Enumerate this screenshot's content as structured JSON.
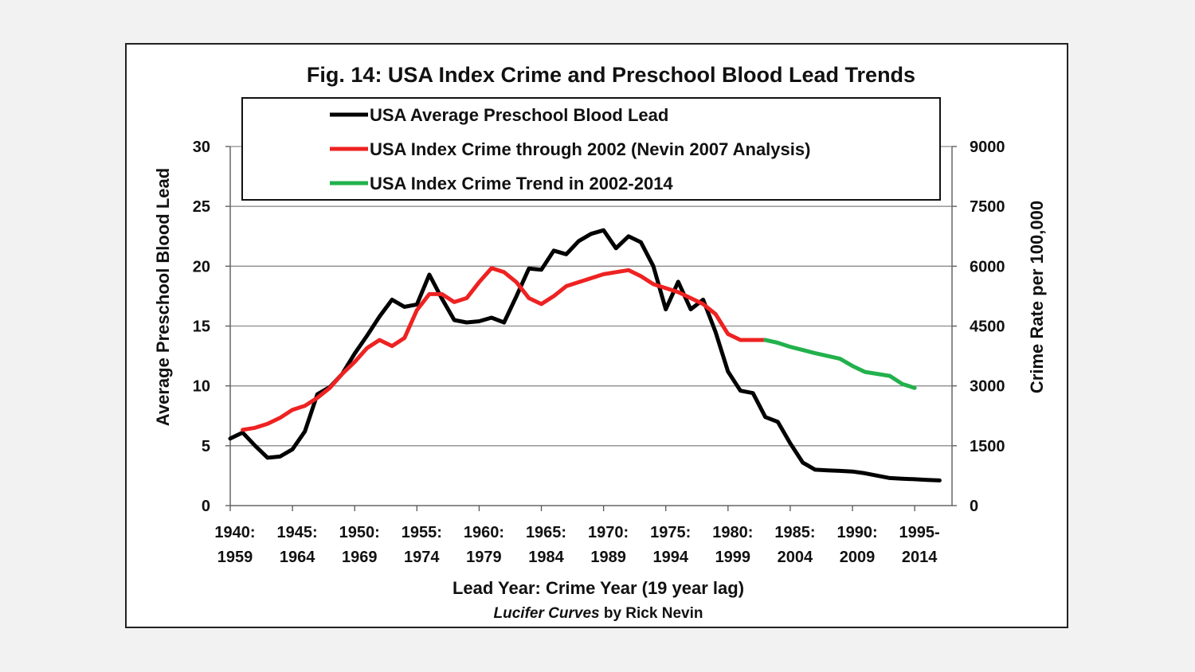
{
  "chart_data": {
    "type": "line",
    "title": "Fig. 14: USA Index Crime and Preschool Blood Lead Trends",
    "xlabel": "Lead Year: Crime Year (19 year lag)",
    "ylabel_left": "Average Preschool Blood Lead",
    "ylabel_right": "Crime Rate per 100,000",
    "credit_italic": "Lucifer Curves",
    "credit_rest": " by Rick Nevin",
    "ylim_left": [
      0,
      30
    ],
    "ylim_right": [
      0,
      9000
    ],
    "yticks_left": [
      "0",
      "5",
      "10",
      "15",
      "20",
      "25",
      "30"
    ],
    "yticks_right": [
      "0",
      "1500",
      "3000",
      "4500",
      "6000",
      "7500",
      "9000"
    ],
    "xlim": [
      1940,
      1998
    ],
    "xticks": [
      {
        "line1": "1940:",
        "line2": "1959"
      },
      {
        "line1": "1945:",
        "line2": "1964"
      },
      {
        "line1": "1950:",
        "line2": "1969"
      },
      {
        "line1": "1955:",
        "line2": "1974"
      },
      {
        "line1": "1960:",
        "line2": "1979"
      },
      {
        "line1": "1965:",
        "line2": "1984"
      },
      {
        "line1": "1970:",
        "line2": "1989"
      },
      {
        "line1": "1975:",
        "line2": "1994"
      },
      {
        "line1": "1980:",
        "line2": "1999"
      },
      {
        "line1": "1985:",
        "line2": "2004"
      },
      {
        "line1": "1990:",
        "line2": "2009"
      },
      {
        "line1": "1995-",
        "line2": "2014"
      }
    ],
    "grid": true,
    "legend_position": "top",
    "series": [
      {
        "name": "USA Average Preschool Blood Lead",
        "axis": "left",
        "color": "#000000",
        "x": [
          1940,
          1941,
          1942,
          1943,
          1944,
          1945,
          1946,
          1947,
          1948,
          1949,
          1950,
          1951,
          1952,
          1953,
          1954,
          1955,
          1956,
          1957,
          1958,
          1959,
          1960,
          1961,
          1962,
          1963,
          1964,
          1965,
          1966,
          1967,
          1968,
          1969,
          1970,
          1971,
          1972,
          1973,
          1974,
          1975,
          1976,
          1977,
          1978,
          1979,
          1980,
          1981,
          1982,
          1983,
          1984,
          1985,
          1986,
          1987,
          1988,
          1989,
          1990,
          1991,
          1992,
          1993,
          1994,
          1995,
          1996,
          1997
        ],
        "y": [
          5.6,
          6.1,
          5.0,
          4.0,
          4.1,
          4.7,
          6.2,
          9.3,
          9.9,
          11.0,
          12.7,
          14.2,
          15.8,
          17.2,
          16.6,
          16.8,
          19.3,
          17.3,
          15.5,
          15.3,
          15.4,
          15.7,
          15.3,
          17.5,
          19.8,
          19.7,
          21.3,
          21.0,
          22.1,
          22.7,
          23.0,
          21.5,
          22.5,
          22.0,
          20.0,
          16.4,
          18.7,
          16.4,
          17.2,
          14.5,
          11.2,
          9.6,
          9.4,
          7.4,
          7.0,
          5.2,
          3.6,
          3.0,
          2.95,
          2.9,
          2.85,
          2.7,
          2.5,
          2.3,
          2.25,
          2.2,
          2.15,
          2.1
        ]
      },
      {
        "name": "USA Index Crime through 2002 (Nevin 2007 Analysis)",
        "axis": "right",
        "color": "#ee2222",
        "x": [
          1941,
          1942,
          1943,
          1944,
          1945,
          1946,
          1947,
          1948,
          1949,
          1950,
          1951,
          1952,
          1953,
          1954,
          1955,
          1956,
          1957,
          1958,
          1959,
          1960,
          1961,
          1962,
          1963,
          1964,
          1965,
          1966,
          1967,
          1968,
          1969,
          1970,
          1971,
          1972,
          1973,
          1974,
          1975,
          1976,
          1977,
          1978,
          1979,
          1980,
          1981,
          1982,
          1983
        ],
        "y": [
          1900,
          1950,
          2050,
          2200,
          2400,
          2500,
          2700,
          2950,
          3300,
          3600,
          3950,
          4150,
          4000,
          4200,
          4900,
          5300,
          5300,
          5100,
          5200,
          5600,
          5950,
          5850,
          5600,
          5200,
          5050,
          5250,
          5500,
          5600,
          5700,
          5800,
          5850,
          5900,
          5750,
          5550,
          5450,
          5350,
          5200,
          5050,
          4800,
          4300,
          4150,
          4150,
          4150
        ]
      },
      {
        "name": "USA Index Crime Trend in 2002-2014",
        "axis": "right",
        "color": "#22b14c",
        "x": [
          1983,
          1984,
          1985,
          1986,
          1987,
          1988,
          1989,
          1990,
          1991,
          1992,
          1993,
          1994,
          1995
        ],
        "y": [
          4150,
          4080,
          3980,
          3900,
          3820,
          3750,
          3680,
          3500,
          3350,
          3300,
          3250,
          3050,
          2950
        ]
      }
    ]
  }
}
